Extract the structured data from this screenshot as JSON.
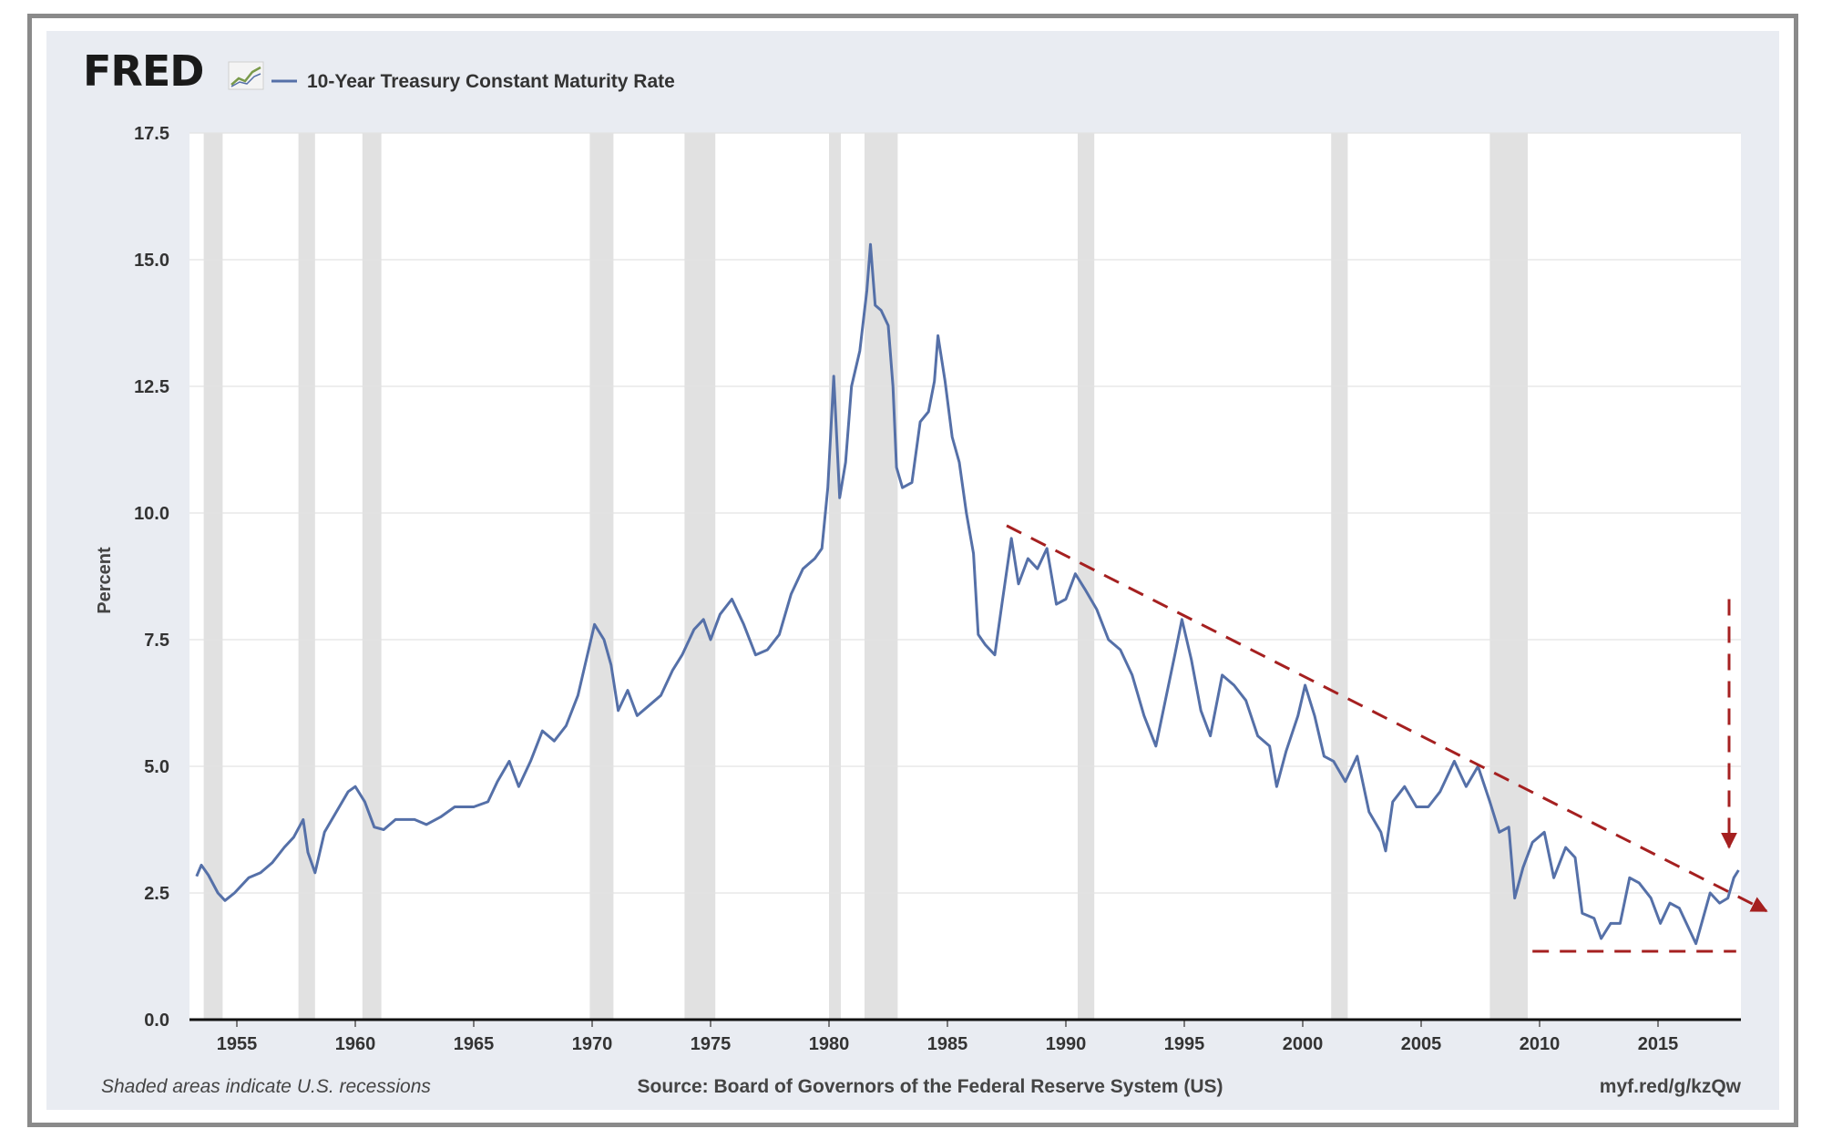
{
  "header": {
    "logo": "FRED",
    "logo_icon": "trend-chart-icon",
    "series_legend": "10-Year Treasury Constant Maturity Rate"
  },
  "footer": {
    "recession_note": "Shaded areas indicate U.S. recessions",
    "source": "Source: Board of Governors of the Federal Reserve System (US)",
    "short_url": "myf.red/g/kzQw"
  },
  "colors": {
    "series": "#5570a8",
    "recession_band": "#e1e1e1",
    "annotation": "#a52020",
    "plot_background": "#ffffff",
    "panel_background": "#e9ecf2"
  },
  "chart_data": {
    "type": "line",
    "title": "",
    "xlabel": "",
    "ylabel": "Percent",
    "xlim": [
      1953.0,
      2018.5
    ],
    "ylim": [
      0,
      17.5
    ],
    "x_ticks": [
      "1955",
      "1960",
      "1965",
      "1970",
      "1975",
      "1980",
      "1985",
      "1990",
      "1995",
      "2000",
      "2005",
      "2010",
      "2015"
    ],
    "y_ticks": [
      "0.0",
      "2.5",
      "5.0",
      "7.5",
      "10.0",
      "12.5",
      "15.0",
      "17.5"
    ],
    "grid": "horizontal",
    "recessions": [
      [
        1953.6,
        1954.4
      ],
      [
        1957.6,
        1958.3
      ],
      [
        1960.3,
        1961.1
      ],
      [
        1969.9,
        1970.9
      ],
      [
        1973.9,
        1975.2
      ],
      [
        1980.0,
        1980.5
      ],
      [
        1981.5,
        1982.9
      ],
      [
        1990.5,
        1991.2
      ],
      [
        2001.2,
        2001.9
      ],
      [
        2007.9,
        2009.5
      ]
    ],
    "series": [
      {
        "name": "10-Year Treasury Constant Maturity Rate",
        "points": [
          [
            1953.3,
            2.83
          ],
          [
            1953.5,
            3.05
          ],
          [
            1953.8,
            2.85
          ],
          [
            1954.2,
            2.5
          ],
          [
            1954.5,
            2.35
          ],
          [
            1954.9,
            2.5
          ],
          [
            1955.5,
            2.8
          ],
          [
            1956.0,
            2.9
          ],
          [
            1956.5,
            3.1
          ],
          [
            1957.0,
            3.4
          ],
          [
            1957.4,
            3.6
          ],
          [
            1957.8,
            3.95
          ],
          [
            1958.0,
            3.3
          ],
          [
            1958.3,
            2.9
          ],
          [
            1958.7,
            3.7
          ],
          [
            1959.2,
            4.1
          ],
          [
            1959.7,
            4.5
          ],
          [
            1960.0,
            4.6
          ],
          [
            1960.4,
            4.3
          ],
          [
            1960.8,
            3.8
          ],
          [
            1961.2,
            3.75
          ],
          [
            1961.7,
            3.95
          ],
          [
            1962.5,
            3.95
          ],
          [
            1963.0,
            3.85
          ],
          [
            1963.6,
            4.0
          ],
          [
            1964.2,
            4.2
          ],
          [
            1965.0,
            4.2
          ],
          [
            1965.6,
            4.3
          ],
          [
            1966.0,
            4.7
          ],
          [
            1966.5,
            5.1
          ],
          [
            1966.9,
            4.6
          ],
          [
            1967.4,
            5.1
          ],
          [
            1967.9,
            5.7
          ],
          [
            1968.4,
            5.5
          ],
          [
            1968.9,
            5.8
          ],
          [
            1969.4,
            6.4
          ],
          [
            1969.8,
            7.2
          ],
          [
            1970.1,
            7.8
          ],
          [
            1970.5,
            7.5
          ],
          [
            1970.8,
            7.0
          ],
          [
            1971.1,
            6.1
          ],
          [
            1971.5,
            6.5
          ],
          [
            1971.9,
            6.0
          ],
          [
            1972.4,
            6.2
          ],
          [
            1972.9,
            6.4
          ],
          [
            1973.4,
            6.9
          ],
          [
            1973.8,
            7.2
          ],
          [
            1974.3,
            7.7
          ],
          [
            1974.7,
            7.9
          ],
          [
            1975.0,
            7.5
          ],
          [
            1975.4,
            8.0
          ],
          [
            1975.9,
            8.3
          ],
          [
            1976.4,
            7.8
          ],
          [
            1976.9,
            7.2
          ],
          [
            1977.4,
            7.3
          ],
          [
            1977.9,
            7.6
          ],
          [
            1978.4,
            8.4
          ],
          [
            1978.9,
            8.9
          ],
          [
            1979.4,
            9.1
          ],
          [
            1979.7,
            9.3
          ],
          [
            1979.95,
            10.5
          ],
          [
            1980.2,
            12.7
          ],
          [
            1980.45,
            10.3
          ],
          [
            1980.7,
            11.0
          ],
          [
            1980.95,
            12.5
          ],
          [
            1981.3,
            13.2
          ],
          [
            1981.6,
            14.4
          ],
          [
            1981.75,
            15.3
          ],
          [
            1981.95,
            14.1
          ],
          [
            1982.2,
            14.0
          ],
          [
            1982.5,
            13.7
          ],
          [
            1982.7,
            12.5
          ],
          [
            1982.85,
            10.9
          ],
          [
            1983.1,
            10.5
          ],
          [
            1983.5,
            10.6
          ],
          [
            1983.85,
            11.8
          ],
          [
            1984.2,
            12.0
          ],
          [
            1984.45,
            12.6
          ],
          [
            1984.6,
            13.5
          ],
          [
            1984.9,
            12.6
          ],
          [
            1985.2,
            11.5
          ],
          [
            1985.5,
            11.0
          ],
          [
            1985.8,
            10.0
          ],
          [
            1986.1,
            9.2
          ],
          [
            1986.3,
            7.6
          ],
          [
            1986.6,
            7.4
          ],
          [
            1987.0,
            7.2
          ],
          [
            1987.3,
            8.2
          ],
          [
            1987.7,
            9.5
          ],
          [
            1988.0,
            8.6
          ],
          [
            1988.4,
            9.1
          ],
          [
            1988.8,
            8.9
          ],
          [
            1989.2,
            9.3
          ],
          [
            1989.6,
            8.2
          ],
          [
            1990.0,
            8.3
          ],
          [
            1990.4,
            8.8
          ],
          [
            1990.8,
            8.5
          ],
          [
            1991.3,
            8.1
          ],
          [
            1991.8,
            7.5
          ],
          [
            1992.3,
            7.3
          ],
          [
            1992.8,
            6.8
          ],
          [
            1993.3,
            6.0
          ],
          [
            1993.8,
            5.4
          ],
          [
            1994.2,
            6.3
          ],
          [
            1994.6,
            7.2
          ],
          [
            1994.9,
            7.9
          ],
          [
            1995.3,
            7.1
          ],
          [
            1995.7,
            6.1
          ],
          [
            1996.1,
            5.6
          ],
          [
            1996.6,
            6.8
          ],
          [
            1997.1,
            6.6
          ],
          [
            1997.6,
            6.3
          ],
          [
            1998.1,
            5.6
          ],
          [
            1998.6,
            5.4
          ],
          [
            1998.9,
            4.6
          ],
          [
            1999.3,
            5.3
          ],
          [
            1999.8,
            6.0
          ],
          [
            2000.1,
            6.6
          ],
          [
            2000.5,
            6.0
          ],
          [
            2000.9,
            5.2
          ],
          [
            2001.3,
            5.1
          ],
          [
            2001.8,
            4.7
          ],
          [
            2002.3,
            5.2
          ],
          [
            2002.8,
            4.1
          ],
          [
            2003.3,
            3.7
          ],
          [
            2003.5,
            3.33
          ],
          [
            2003.8,
            4.3
          ],
          [
            2004.3,
            4.6
          ],
          [
            2004.8,
            4.2
          ],
          [
            2005.3,
            4.2
          ],
          [
            2005.8,
            4.5
          ],
          [
            2006.4,
            5.1
          ],
          [
            2006.9,
            4.6
          ],
          [
            2007.4,
            5.0
          ],
          [
            2007.9,
            4.3
          ],
          [
            2008.3,
            3.7
          ],
          [
            2008.7,
            3.8
          ],
          [
            2008.95,
            2.4
          ],
          [
            2009.3,
            3.0
          ],
          [
            2009.7,
            3.5
          ],
          [
            2010.2,
            3.7
          ],
          [
            2010.6,
            2.8
          ],
          [
            2011.1,
            3.4
          ],
          [
            2011.5,
            3.2
          ],
          [
            2011.8,
            2.1
          ],
          [
            2012.3,
            2.0
          ],
          [
            2012.6,
            1.6
          ],
          [
            2013.0,
            1.9
          ],
          [
            2013.4,
            1.9
          ],
          [
            2013.8,
            2.8
          ],
          [
            2014.2,
            2.7
          ],
          [
            2014.7,
            2.4
          ],
          [
            2015.1,
            1.9
          ],
          [
            2015.5,
            2.3
          ],
          [
            2015.9,
            2.2
          ],
          [
            2016.4,
            1.7
          ],
          [
            2016.6,
            1.5
          ],
          [
            2016.9,
            2.0
          ],
          [
            2017.2,
            2.5
          ],
          [
            2017.6,
            2.3
          ],
          [
            2017.95,
            2.4
          ],
          [
            2018.2,
            2.8
          ],
          [
            2018.4,
            2.95
          ]
        ]
      }
    ],
    "annotations": [
      {
        "kind": "dashed-trendline-arrow",
        "from": [
          1987.5,
          9.75
        ],
        "to": [
          2018.5,
          2.4
        ],
        "extends_past_axis": true
      },
      {
        "kind": "dashed-vertical-arrow",
        "x": 2018.0,
        "from_y": 8.3,
        "to_y": 3.4
      },
      {
        "kind": "dashed-horizontal-support",
        "y": 1.35,
        "from_x": 2009.7,
        "to_x": 2018.3
      }
    ]
  }
}
